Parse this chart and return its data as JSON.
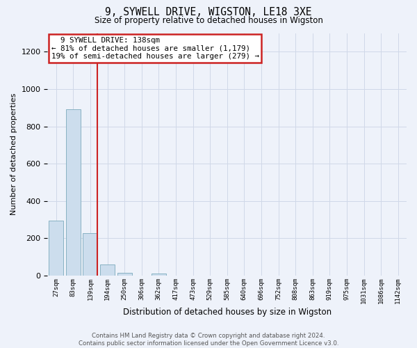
{
  "title_line1": "9, SYWELL DRIVE, WIGSTON, LE18 3XE",
  "title_line2": "Size of property relative to detached houses in Wigston",
  "xlabel": "Distribution of detached houses by size in Wigston",
  "ylabel": "Number of detached properties",
  "footer_line1": "Contains HM Land Registry data © Crown copyright and database right 2024.",
  "footer_line2": "Contains public sector information licensed under the Open Government Licence v3.0.",
  "annotation_line1": "  9 SYWELL DRIVE: 138sqm  ",
  "annotation_line2": "← 81% of detached houses are smaller (1,179)",
  "annotation_line3": "19% of semi-detached houses are larger (279) →",
  "bin_labels": [
    "27sqm",
    "83sqm",
    "139sqm",
    "194sqm",
    "250sqm",
    "306sqm",
    "362sqm",
    "417sqm",
    "473sqm",
    "529sqm",
    "585sqm",
    "640sqm",
    "696sqm",
    "752sqm",
    "808sqm",
    "863sqm",
    "919sqm",
    "975sqm",
    "1031sqm",
    "1086sqm",
    "1142sqm"
  ],
  "bar_values": [
    295,
    893,
    228,
    60,
    15,
    0,
    12,
    0,
    0,
    0,
    0,
    0,
    0,
    0,
    0,
    0,
    0,
    0,
    0,
    0,
    0
  ],
  "bar_color": "#ccdded",
  "bar_edge_color": "#7aaabb",
  "red_line_color": "#cc2222",
  "annotation_box_edge_color": "#cc2222",
  "background_color": "#eef2fa",
  "grid_color": "#d0d8e8",
  "ylim": [
    0,
    1300
  ],
  "yticks": [
    0,
    200,
    400,
    600,
    800,
    1000,
    1200
  ],
  "property_bin_index": 2,
  "figwidth": 6.0,
  "figheight": 5.0,
  "dpi": 100
}
